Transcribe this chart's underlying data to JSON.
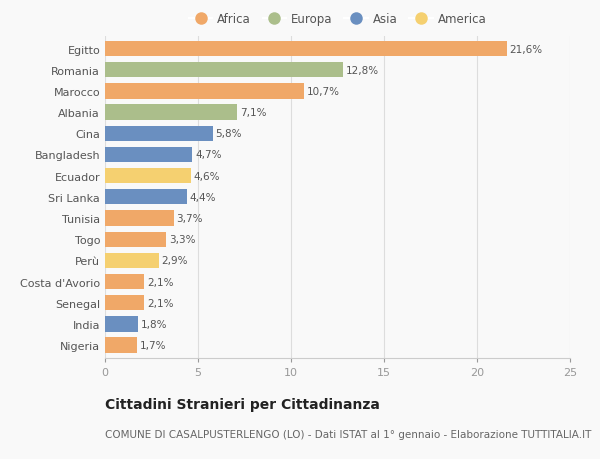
{
  "categories": [
    "Egitto",
    "Romania",
    "Marocco",
    "Albania",
    "Cina",
    "Bangladesh",
    "Ecuador",
    "Sri Lanka",
    "Tunisia",
    "Togo",
    "Perù",
    "Costa d'Avorio",
    "Senegal",
    "India",
    "Nigeria"
  ],
  "values": [
    21.6,
    12.8,
    10.7,
    7.1,
    5.8,
    4.7,
    4.6,
    4.4,
    3.7,
    3.3,
    2.9,
    2.1,
    2.1,
    1.8,
    1.7
  ],
  "labels": [
    "21,6%",
    "12,8%",
    "10,7%",
    "7,1%",
    "5,8%",
    "4,7%",
    "4,6%",
    "4,4%",
    "3,7%",
    "3,3%",
    "2,9%",
    "2,1%",
    "2,1%",
    "1,8%",
    "1,7%"
  ],
  "continents": [
    "Africa",
    "Europa",
    "Africa",
    "Europa",
    "Asia",
    "Asia",
    "America",
    "Asia",
    "Africa",
    "Africa",
    "America",
    "Africa",
    "Africa",
    "Asia",
    "Africa"
  ],
  "continent_colors": {
    "Africa": "#F0A868",
    "Europa": "#ABBE8B",
    "Asia": "#6A8FC0",
    "America": "#F5D070"
  },
  "legend_order": [
    "Africa",
    "Europa",
    "Asia",
    "America"
  ],
  "title": "Cittadini Stranieri per Cittadinanza",
  "subtitle": "COMUNE DI CASALPUSTERLENGO (LO) - Dati ISTAT al 1° gennaio - Elaborazione TUTTITALIA.IT",
  "xlim": [
    0,
    25
  ],
  "xticks": [
    0,
    5,
    10,
    15,
    20,
    25
  ],
  "background_color": "#f9f9f9",
  "bar_height": 0.72,
  "title_fontsize": 10,
  "subtitle_fontsize": 7.5,
  "label_fontsize": 7.5,
  "tick_fontsize": 8,
  "legend_fontsize": 8.5
}
